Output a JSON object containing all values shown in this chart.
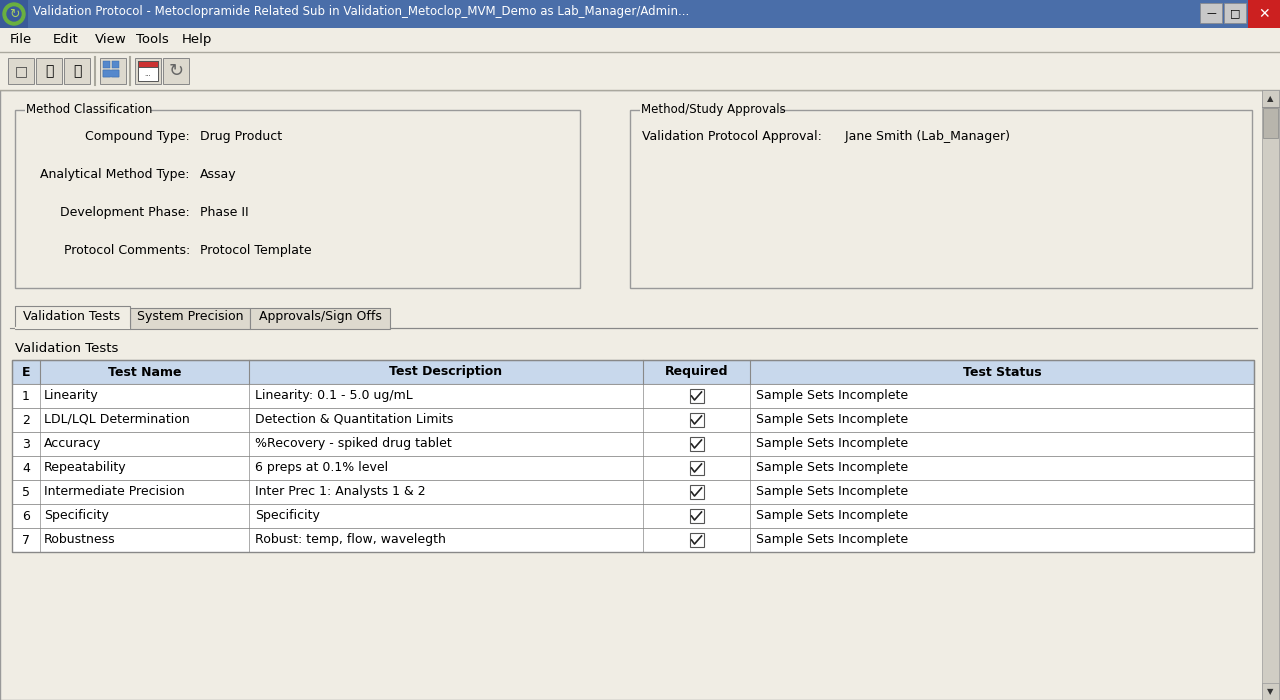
{
  "title_bar_text": "Validation Protocol - Metoclopramide Related Sub in Validation_Metoclop_MVM_Demo as Lab_Manager/Admin...",
  "menu_items": [
    "File",
    "Edit",
    "View",
    "Tools",
    "Help"
  ],
  "method_classification_label": "Method Classification",
  "mc_fields": [
    {
      "label": "Compound Type:",
      "value": "Drug Product"
    },
    {
      "label": "Analytical Method Type:",
      "value": "Assay"
    },
    {
      "label": "Development Phase:",
      "value": "Phase II"
    },
    {
      "label": "Protocol Comments:",
      "value": "Protocol Template"
    }
  ],
  "method_approvals_label": "Method/Study Approvals",
  "ma_fields": [
    {
      "label": "Validation Protocol Approval:",
      "value": "  Jane Smith (Lab_Manager)"
    }
  ],
  "tabs": [
    "Validation Tests",
    "System Precision",
    "Approvals/Sign Offs"
  ],
  "section_label": "Validation Tests",
  "table_headers": [
    "E",
    "Test Name",
    "Test Description",
    "Required",
    "Test Status"
  ],
  "table_col_widths": [
    28,
    205,
    385,
    105,
    490
  ],
  "table_rows": [
    [
      "1",
      "Linearity",
      "Linearity: 0.1 - 5.0 ug/mL",
      true,
      "Sample Sets Incomplete"
    ],
    [
      "2",
      "LDL/LQL Determination",
      "Detection & Quantitation Limits",
      true,
      "Sample Sets Incomplete"
    ],
    [
      "3",
      "Accuracy",
      "%Recovery - spiked drug tablet",
      true,
      "Sample Sets Incomplete"
    ],
    [
      "4",
      "Repeatability",
      "6 preps at 0.1% level",
      true,
      "Sample Sets Incomplete"
    ],
    [
      "5",
      "Intermediate Precision",
      "Inter Prec 1: Analysts 1 & 2",
      true,
      "Sample Sets Incomplete"
    ],
    [
      "6",
      "Specificity",
      "Specificity",
      true,
      "Sample Sets Incomplete"
    ],
    [
      "7",
      "Robustness",
      "Robust: temp, flow, wavelegth",
      true,
      "Sample Sets Incomplete"
    ]
  ],
  "colors": {
    "title_bg": "#4a6ea9",
    "title_text": "#ffffff",
    "window_bg": "#f0ede4",
    "menu_bg": "#f0ede4",
    "toolbar_bg": "#f0ede4",
    "content_bg": "#f0ede4",
    "outer_border": "#999999",
    "groupbox_border": "#999999",
    "groupbox_bg": "#f0ede4",
    "table_header_bg": "#c8d8ec",
    "table_row_bg": "#ffffff",
    "table_border": "#888888",
    "tab_active_bg": "#f0ede4",
    "tab_inactive_bg": "#ddd9ce",
    "tab_border": "#888888",
    "scrollbar_bg": "#d0cdc4",
    "scrollbar_btn": "#d0cdc4",
    "btn_bg": "#ddd9ce",
    "btn_border": "#888888",
    "close_btn": "#cc2020",
    "text": "#000000",
    "separator": "#aaa89e"
  }
}
